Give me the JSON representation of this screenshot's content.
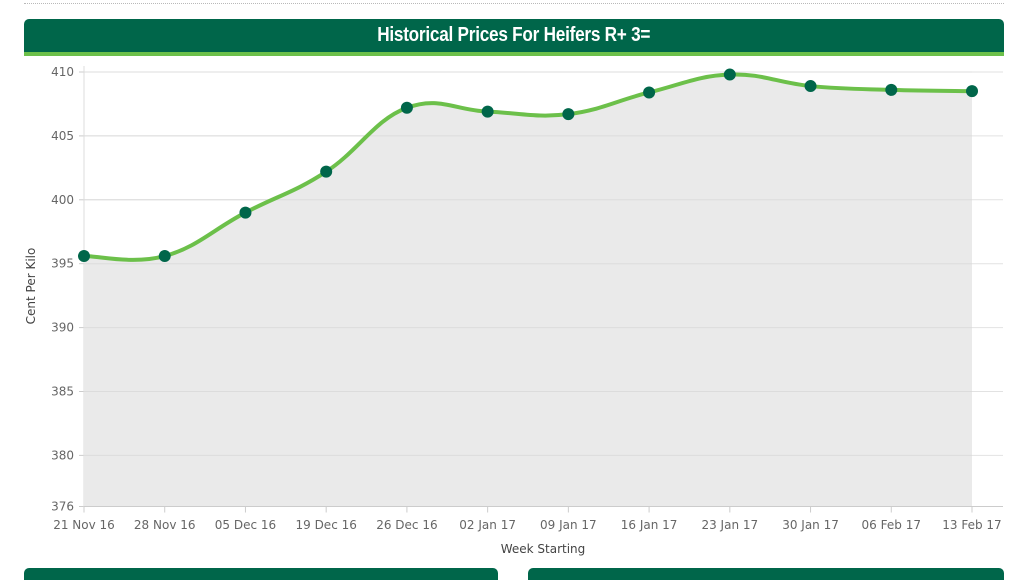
{
  "page": {
    "title": "Historical Prices For Heifers R+ 3="
  },
  "colors": {
    "header_bg": "#00664a",
    "header_accent": "#6cc04a",
    "line": "#6cc04a",
    "marker": "#00664a",
    "area": "#e9e9e9",
    "grid": "#e2e2e2",
    "tick_text": "#666666"
  },
  "chart_data": {
    "type": "area",
    "title": "Historical Prices For Heifers R+ 3=",
    "xlabel": "Week Starting",
    "ylabel": "Cent Per Kilo",
    "categories": [
      "21 Nov 16",
      "28 Nov 16",
      "05 Dec 16",
      "19 Dec 16",
      "26 Dec 16",
      "02 Jan 17",
      "09 Jan 17",
      "16 Jan 17",
      "23 Jan 17",
      "30 Jan 17",
      "06 Feb 17",
      "13 Feb 17"
    ],
    "series": [
      {
        "name": "Heifers R+ 3=",
        "values": [
          395.6,
          395.6,
          399.0,
          402.2,
          407.2,
          406.9,
          406.7,
          408.4,
          409.8,
          408.9,
          408.6,
          408.5
        ]
      }
    ],
    "yticks": [
      376,
      380,
      385,
      390,
      395,
      400,
      405,
      410
    ],
    "ylim": [
      376,
      410
    ],
    "grid": true,
    "legend": false,
    "smooth": true,
    "markers": true
  }
}
